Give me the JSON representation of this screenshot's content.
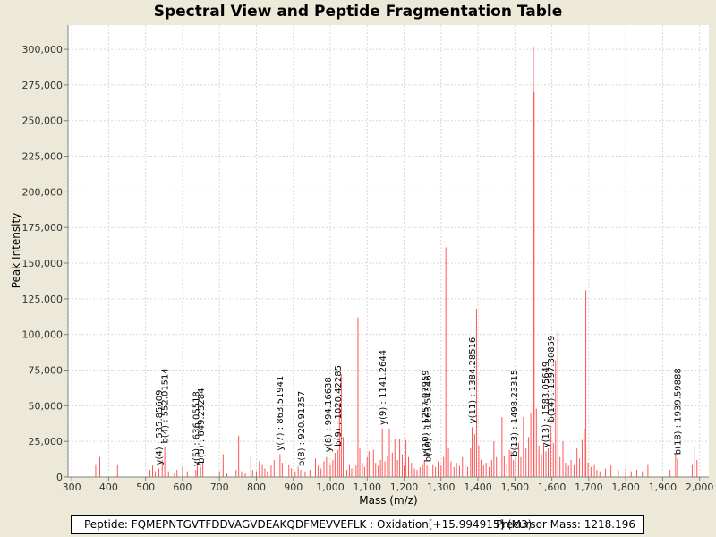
{
  "chart_data": {
    "type": "bar",
    "title": "Spectral View and Peptide Fragmentation Table",
    "xlabel": "Mass (m/z)",
    "ylabel": "Peak Intensity",
    "xlim": [
      290,
      2025
    ],
    "ylim": [
      0,
      317000
    ],
    "grid": true,
    "x_ticks": [
      300,
      400,
      500,
      600,
      700,
      800,
      900,
      1000,
      1100,
      1200,
      1300,
      1400,
      1500,
      1600,
      1700,
      1800,
      1900,
      2000
    ],
    "x_tick_labels": [
      "300",
      "400",
      "500",
      "600",
      "700",
      "800",
      "900",
      "1,000",
      "1,100",
      "1,200",
      "1,300",
      "1,400",
      "1,500",
      "1,600",
      "1,700",
      "1,800",
      "1,900",
      "2,000"
    ],
    "y_ticks": [
      0,
      25000,
      50000,
      75000,
      100000,
      125000,
      150000,
      175000,
      200000,
      225000,
      250000,
      275000,
      300000
    ],
    "y_tick_labels": [
      "0",
      "25,000",
      "50,000",
      "75,000",
      "100,000",
      "125,000",
      "150,000",
      "175,000",
      "200,000",
      "225,000",
      "250,000",
      "275,000",
      "300,000"
    ],
    "peak_color": "#ff5555",
    "peaks": [
      {
        "mz": 365,
        "intensity": 9000
      },
      {
        "mz": 376,
        "intensity": 14000
      },
      {
        "mz": 424,
        "intensity": 9000
      },
      {
        "mz": 512,
        "intensity": 5000
      },
      {
        "mz": 519,
        "intensity": 8000
      },
      {
        "mz": 526,
        "intensity": 4000
      },
      {
        "mz": 536,
        "intensity": 6000
      },
      {
        "mz": 545,
        "intensity": 12000
      },
      {
        "mz": 552,
        "intensity": 21000
      },
      {
        "mz": 562,
        "intensity": 4000
      },
      {
        "mz": 578,
        "intensity": 3000
      },
      {
        "mz": 585,
        "intensity": 5000
      },
      {
        "mz": 600,
        "intensity": 7000
      },
      {
        "mz": 613,
        "intensity": 4000
      },
      {
        "mz": 636,
        "intensity": 5000
      },
      {
        "mz": 640,
        "intensity": 9000
      },
      {
        "mz": 649,
        "intensity": 7000
      },
      {
        "mz": 655,
        "intensity": 10000
      },
      {
        "mz": 700,
        "intensity": 4000
      },
      {
        "mz": 710,
        "intensity": 16000
      },
      {
        "mz": 720,
        "intensity": 3000
      },
      {
        "mz": 745,
        "intensity": 5000
      },
      {
        "mz": 752,
        "intensity": 29000
      },
      {
        "mz": 760,
        "intensity": 4000
      },
      {
        "mz": 770,
        "intensity": 3000
      },
      {
        "mz": 785,
        "intensity": 14000
      },
      {
        "mz": 790,
        "intensity": 5000
      },
      {
        "mz": 800,
        "intensity": 4000
      },
      {
        "mz": 808,
        "intensity": 11000
      },
      {
        "mz": 816,
        "intensity": 9000
      },
      {
        "mz": 823,
        "intensity": 6000
      },
      {
        "mz": 830,
        "intensity": 4000
      },
      {
        "mz": 840,
        "intensity": 8000
      },
      {
        "mz": 848,
        "intensity": 12000
      },
      {
        "mz": 856,
        "intensity": 6000
      },
      {
        "mz": 864,
        "intensity": 16000
      },
      {
        "mz": 870,
        "intensity": 10000
      },
      {
        "mz": 880,
        "intensity": 5000
      },
      {
        "mz": 888,
        "intensity": 9000
      },
      {
        "mz": 895,
        "intensity": 6000
      },
      {
        "mz": 905,
        "intensity": 4000
      },
      {
        "mz": 913,
        "intensity": 7000
      },
      {
        "mz": 920,
        "intensity": 5000
      },
      {
        "mz": 932,
        "intensity": 4000
      },
      {
        "mz": 945,
        "intensity": 5000
      },
      {
        "mz": 960,
        "intensity": 13000
      },
      {
        "mz": 967,
        "intensity": 8000
      },
      {
        "mz": 975,
        "intensity": 6000
      },
      {
        "mz": 983,
        "intensity": 11000
      },
      {
        "mz": 990,
        "intensity": 14000
      },
      {
        "mz": 994,
        "intensity": 15000
      },
      {
        "mz": 1000,
        "intensity": 9000
      },
      {
        "mz": 1007,
        "intensity": 12000
      },
      {
        "mz": 1013,
        "intensity": 17000
      },
      {
        "mz": 1020,
        "intensity": 19000
      },
      {
        "mz": 1025,
        "intensity": 52000
      },
      {
        "mz": 1030,
        "intensity": 72000
      },
      {
        "mz": 1035,
        "intensity": 28000
      },
      {
        "mz": 1040,
        "intensity": 8000
      },
      {
        "mz": 1045,
        "intensity": 5000
      },
      {
        "mz": 1052,
        "intensity": 9000
      },
      {
        "mz": 1058,
        "intensity": 6000
      },
      {
        "mz": 1064,
        "intensity": 13000
      },
      {
        "mz": 1070,
        "intensity": 8000
      },
      {
        "mz": 1075,
        "intensity": 112000
      },
      {
        "mz": 1080,
        "intensity": 20000
      },
      {
        "mz": 1087,
        "intensity": 10000
      },
      {
        "mz": 1093,
        "intensity": 7000
      },
      {
        "mz": 1100,
        "intensity": 14000
      },
      {
        "mz": 1105,
        "intensity": 18000
      },
      {
        "mz": 1110,
        "intensity": 12000
      },
      {
        "mz": 1117,
        "intensity": 19000
      },
      {
        "mz": 1123,
        "intensity": 10000
      },
      {
        "mz": 1130,
        "intensity": 8000
      },
      {
        "mz": 1136,
        "intensity": 12000
      },
      {
        "mz": 1141,
        "intensity": 34000
      },
      {
        "mz": 1148,
        "intensity": 11000
      },
      {
        "mz": 1155,
        "intensity": 15000
      },
      {
        "mz": 1160,
        "intensity": 34000
      },
      {
        "mz": 1168,
        "intensity": 17000
      },
      {
        "mz": 1175,
        "intensity": 27000
      },
      {
        "mz": 1182,
        "intensity": 12000
      },
      {
        "mz": 1188,
        "intensity": 27000
      },
      {
        "mz": 1195,
        "intensity": 16000
      },
      {
        "mz": 1200,
        "intensity": 8000
      },
      {
        "mz": 1205,
        "intensity": 26000
      },
      {
        "mz": 1212,
        "intensity": 14000
      },
      {
        "mz": 1220,
        "intensity": 10000
      },
      {
        "mz": 1228,
        "intensity": 6000
      },
      {
        "mz": 1235,
        "intensity": 5000
      },
      {
        "mz": 1243,
        "intensity": 7000
      },
      {
        "mz": 1250,
        "intensity": 9000
      },
      {
        "mz": 1255,
        "intensity": 12000
      },
      {
        "mz": 1262,
        "intensity": 8000
      },
      {
        "mz": 1270,
        "intensity": 6000
      },
      {
        "mz": 1278,
        "intensity": 9000
      },
      {
        "mz": 1285,
        "intensity": 7000
      },
      {
        "mz": 1292,
        "intensity": 11000
      },
      {
        "mz": 1300,
        "intensity": 8000
      },
      {
        "mz": 1307,
        "intensity": 14000
      },
      {
        "mz": 1313,
        "intensity": 161000
      },
      {
        "mz": 1320,
        "intensity": 20000
      },
      {
        "mz": 1327,
        "intensity": 11000
      },
      {
        "mz": 1335,
        "intensity": 7000
      },
      {
        "mz": 1342,
        "intensity": 10000
      },
      {
        "mz": 1350,
        "intensity": 8000
      },
      {
        "mz": 1358,
        "intensity": 14000
      },
      {
        "mz": 1365,
        "intensity": 10000
      },
      {
        "mz": 1372,
        "intensity": 7000
      },
      {
        "mz": 1380,
        "intensity": 20000
      },
      {
        "mz": 1384,
        "intensity": 35000
      },
      {
        "mz": 1391,
        "intensity": 30000
      },
      {
        "mz": 1396,
        "intensity": 118000
      },
      {
        "mz": 1402,
        "intensity": 22000
      },
      {
        "mz": 1408,
        "intensity": 12000
      },
      {
        "mz": 1415,
        "intensity": 8000
      },
      {
        "mz": 1422,
        "intensity": 10000
      },
      {
        "mz": 1430,
        "intensity": 7000
      },
      {
        "mz": 1437,
        "intensity": 12000
      },
      {
        "mz": 1443,
        "intensity": 25000
      },
      {
        "mz": 1450,
        "intensity": 14000
      },
      {
        "mz": 1457,
        "intensity": 8000
      },
      {
        "mz": 1465,
        "intensity": 42000
      },
      {
        "mz": 1471,
        "intensity": 15000
      },
      {
        "mz": 1478,
        "intensity": 10000
      },
      {
        "mz": 1485,
        "intensity": 19000
      },
      {
        "mz": 1490,
        "intensity": 18000
      },
      {
        "mz": 1496,
        "intensity": 12000
      },
      {
        "mz": 1502,
        "intensity": 16000
      },
      {
        "mz": 1510,
        "intensity": 24000
      },
      {
        "mz": 1516,
        "intensity": 14000
      },
      {
        "mz": 1523,
        "intensity": 42000
      },
      {
        "mz": 1530,
        "intensity": 20000
      },
      {
        "mz": 1537,
        "intensity": 28000
      },
      {
        "mz": 1543,
        "intensity": 45000
      },
      {
        "mz": 1550,
        "intensity": 302000
      },
      {
        "mz": 1552,
        "intensity": 270000
      },
      {
        "mz": 1558,
        "intensity": 48000
      },
      {
        "mz": 1565,
        "intensity": 22000
      },
      {
        "mz": 1572,
        "intensity": 16000
      },
      {
        "mz": 1578,
        "intensity": 24000
      },
      {
        "mz": 1584,
        "intensity": 18000
      },
      {
        "mz": 1590,
        "intensity": 20000
      },
      {
        "mz": 1597,
        "intensity": 36000
      },
      {
        "mz": 1604,
        "intensity": 24000
      },
      {
        "mz": 1610,
        "intensity": 82000
      },
      {
        "mz": 1616,
        "intensity": 102000
      },
      {
        "mz": 1622,
        "intensity": 14000
      },
      {
        "mz": 1630,
        "intensity": 25000
      },
      {
        "mz": 1637,
        "intensity": 10000
      },
      {
        "mz": 1645,
        "intensity": 8000
      },
      {
        "mz": 1652,
        "intensity": 12000
      },
      {
        "mz": 1660,
        "intensity": 9000
      },
      {
        "mz": 1668,
        "intensity": 20000
      },
      {
        "mz": 1675,
        "intensity": 13000
      },
      {
        "mz": 1682,
        "intensity": 26000
      },
      {
        "mz": 1688,
        "intensity": 34000
      },
      {
        "mz": 1692,
        "intensity": 131000
      },
      {
        "mz": 1698,
        "intensity": 10000
      },
      {
        "mz": 1706,
        "intensity": 7000
      },
      {
        "mz": 1715,
        "intensity": 9000
      },
      {
        "mz": 1722,
        "intensity": 5000
      },
      {
        "mz": 1730,
        "intensity": 4000
      },
      {
        "mz": 1745,
        "intensity": 6000
      },
      {
        "mz": 1760,
        "intensity": 8000
      },
      {
        "mz": 1780,
        "intensity": 5000
      },
      {
        "mz": 1800,
        "intensity": 6000
      },
      {
        "mz": 1815,
        "intensity": 4000
      },
      {
        "mz": 1830,
        "intensity": 5000
      },
      {
        "mz": 1845,
        "intensity": 4000
      },
      {
        "mz": 1860,
        "intensity": 9000
      },
      {
        "mz": 1920,
        "intensity": 5000
      },
      {
        "mz": 1935,
        "intensity": 16000
      },
      {
        "mz": 1940,
        "intensity": 13000
      },
      {
        "mz": 1980,
        "intensity": 9000
      },
      {
        "mz": 1987,
        "intensity": 22000
      },
      {
        "mz": 1993,
        "intensity": 12000
      }
    ],
    "annotations": [
      {
        "label": "y(4) : 535.85609",
        "mz": 535.86
      },
      {
        "label": "b(4) : 552.01514",
        "mz": 552.02
      },
      {
        "label": "y(5) : 636.05518",
        "mz": 636.06
      },
      {
        "label": "b(5) : 649.25284",
        "mz": 649.25
      },
      {
        "label": "y(7) : 863.51941",
        "mz": 863.52
      },
      {
        "label": "b(8) : 920.91357",
        "mz": 920.91
      },
      {
        "label": "y(8) : 994.16638",
        "mz": 994.17
      },
      {
        "label": "b(9) : 1020.42285",
        "mz": 1020.42
      },
      {
        "label": "y(9) : 1141.2644",
        "mz": 1141.26
      },
      {
        "label": "y(10) : 1257.07959",
        "mz": 1257.08
      },
      {
        "label": "b(10) : 1263.54346",
        "mz": 1263.54
      },
      {
        "label": "y(11) : 1384.28516",
        "mz": 1384.29
      },
      {
        "label": "b(13) : 1498.23315",
        "mz": 1498.23
      },
      {
        "label": "y(13) : 1583.05649",
        "mz": 1583.06
      },
      {
        "label": "b(14) : 1597.30859",
        "mz": 1597.31
      },
      {
        "label": "b(18) : 1939.59888",
        "mz": 1939.6
      }
    ]
  },
  "footer": {
    "peptide": "Peptide: FQMEPNTGVTFDDVAGVDEAKQDFMEVVEFLK : Oxidation[+15.994915] (M3)",
    "precursor": "Precursor Mass: 1218.196"
  }
}
